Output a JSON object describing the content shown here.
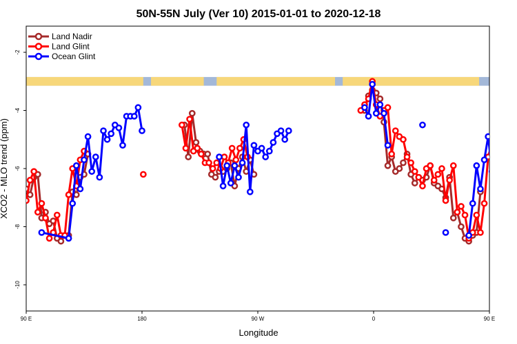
{
  "chart_data": {
    "type": "line",
    "title": "50N-55N July (Ver 10)   2015-01-01 to 2020-12-18",
    "xlabel": "Longitude",
    "ylabel": "XCO2 - MLO trend (ppm)",
    "xlim": [
      90,
      450
    ],
    "ylim": [
      -10.9,
      -1.1
    ],
    "x_ticks": [
      {
        "value": 90,
        "label": "90 E"
      },
      {
        "value": 180,
        "label": "180"
      },
      {
        "value": 270,
        "label": "90 W"
      },
      {
        "value": 360,
        "label": "0"
      },
      {
        "value": 450,
        "label": "90 E"
      }
    ],
    "y_ticks": [
      {
        "value": -2,
        "label": "-2"
      },
      {
        "value": -4,
        "label": "-4"
      },
      {
        "value": -6,
        "label": "-6"
      },
      {
        "value": -8,
        "label": "-8"
      },
      {
        "value": -10,
        "label": "-10"
      }
    ],
    "grid": false,
    "legend_position": "top-left",
    "land_band": {
      "y_top": -2.85,
      "y_bottom": -3.15,
      "ocean_color": "#a3b8d8",
      "land_color": "#f7d77a",
      "land_ranges": [
        [
          90,
          181
        ],
        [
          187,
          228
        ],
        [
          238,
          330
        ],
        [
          336,
          442
        ]
      ]
    },
    "series": [
      {
        "name": "Land Nadir",
        "color": "#a52a2a",
        "segments": [
          [
            [
              90,
              -6.7
            ],
            [
              93,
              -6.9
            ],
            [
              96,
              -6.3
            ],
            [
              99,
              -6.2
            ],
            [
              102,
              -7.7
            ],
            [
              105,
              -7.5
            ],
            [
              108,
              -7.9
            ],
            [
              111,
              -7.8
            ],
            [
              114,
              -8.4
            ],
            [
              117,
              -8.5
            ],
            [
              120,
              -8.3
            ],
            [
              123,
              -8.3
            ],
            [
              126,
              -6.8
            ],
            [
              129,
              -6.9
            ],
            [
              132,
              -6.3
            ],
            [
              135,
              -6.2
            ],
            [
              138,
              -5.5
            ]
          ],
          [
            [
              213,
              -4.5
            ],
            [
              216,
              -5.6
            ],
            [
              219,
              -4.1
            ],
            [
              222,
              -5.1
            ],
            [
              225,
              -5.4
            ],
            [
              228,
              -5.5
            ],
            [
              231,
              -5.5
            ],
            [
              234,
              -6.2
            ],
            [
              237,
              -6.3
            ],
            [
              240,
              -6.1
            ],
            [
              243,
              -6.1
            ],
            [
              246,
              -6.0
            ],
            [
              249,
              -5.8
            ],
            [
              252,
              -6.6
            ],
            [
              255,
              -6.0
            ],
            [
              258,
              -5.6
            ],
            [
              261,
              -6.1
            ],
            [
              264,
              -5.7
            ],
            [
              267,
              -6.2
            ]
          ],
          [
            [
              353,
              -4.0
            ],
            [
              356,
              -3.5
            ],
            [
              359,
              -3.3
            ],
            [
              362,
              -3.4
            ],
            [
              365,
              -3.6
            ],
            [
              368,
              -4.4
            ],
            [
              371,
              -5.9
            ],
            [
              374,
              -5.6
            ],
            [
              377,
              -6.1
            ],
            [
              380,
              -6.0
            ],
            [
              383,
              -5.8
            ],
            [
              386,
              -5.5
            ],
            [
              389,
              -6.2
            ],
            [
              392,
              -6.5
            ],
            [
              395,
              -6.3
            ],
            [
              398,
              -6.4
            ],
            [
              401,
              -6.3
            ],
            [
              404,
              -5.9
            ],
            [
              407,
              -6.5
            ],
            [
              410,
              -6.6
            ],
            [
              413,
              -6.7
            ],
            [
              416,
              -7.0
            ],
            [
              419,
              -6.3
            ],
            [
              422,
              -7.7
            ],
            [
              425,
              -7.5
            ],
            [
              428,
              -8.0
            ],
            [
              431,
              -8.4
            ],
            [
              434,
              -8.5
            ],
            [
              437,
              -8.3
            ],
            [
              440,
              -8.2
            ],
            [
              443,
              -6.8
            ]
          ]
        ]
      },
      {
        "name": "Land Glint",
        "color": "#ff0000",
        "segments": [
          [
            [
              90,
              -7.1
            ],
            [
              93,
              -6.4
            ],
            [
              96,
              -6.1
            ],
            [
              99,
              -7.5
            ],
            [
              102,
              -7.2
            ],
            [
              105,
              -7.7
            ],
            [
              108,
              -8.4
            ],
            [
              111,
              -8.2
            ],
            [
              114,
              -7.6
            ],
            [
              117,
              -8.3
            ],
            [
              120,
              -8.3
            ],
            [
              123,
              -6.9
            ],
            [
              126,
              -6.0
            ],
            [
              129,
              -6.6
            ],
            [
              132,
              -5.7
            ],
            [
              135,
              -5.4
            ]
          ],
          [
            [
              181,
              -6.2
            ]
          ],
          [
            [
              211,
              -4.5
            ],
            [
              214,
              -5.3
            ],
            [
              217,
              -4.3
            ],
            [
              220,
              -5.4
            ],
            [
              223,
              -5.3
            ],
            [
              226,
              -5.5
            ],
            [
              229,
              -5.8
            ],
            [
              232,
              -5.8
            ],
            [
              235,
              -6.0
            ],
            [
              238,
              -5.8
            ],
            [
              241,
              -6.0
            ],
            [
              244,
              -5.6
            ],
            [
              247,
              -5.8
            ],
            [
              250,
              -5.3
            ],
            [
              253,
              -5.7
            ],
            [
              256,
              -5.3
            ],
            [
              259,
              -5.0
            ],
            [
              262,
              -5.6
            ]
          ],
          [
            [
              350,
              -4.0
            ],
            [
              353,
              -3.8
            ],
            [
              356,
              -3.6
            ],
            [
              359,
              -3.0
            ],
            [
              362,
              -3.8
            ],
            [
              365,
              -4.2
            ],
            [
              368,
              -4.0
            ],
            [
              371,
              -3.9
            ],
            [
              374,
              -5.5
            ],
            [
              377,
              -4.7
            ],
            [
              380,
              -4.9
            ],
            [
              383,
              -5.0
            ],
            [
              386,
              -5.6
            ],
            [
              389,
              -5.8
            ],
            [
              392,
              -6.1
            ],
            [
              395,
              -6.3
            ],
            [
              398,
              -6.6
            ],
            [
              401,
              -6.0
            ],
            [
              404,
              -5.9
            ],
            [
              407,
              -6.4
            ],
            [
              410,
              -6.2
            ],
            [
              413,
              -6.0
            ],
            [
              416,
              -7.1
            ],
            [
              419,
              -6.4
            ],
            [
              422,
              -5.9
            ],
            [
              425,
              -7.5
            ],
            [
              428,
              -7.3
            ],
            [
              431,
              -7.6
            ],
            [
              434,
              -8.4
            ],
            [
              437,
              -8.2
            ],
            [
              440,
              -7.6
            ],
            [
              443,
              -8.2
            ],
            [
              446,
              -7.2
            ],
            [
              449,
              -5.6
            ],
            [
              452,
              -5.1
            ]
          ]
        ]
      },
      {
        "name": "Ocean Glint",
        "color": "#0000ff",
        "segments": [
          [
            [
              102,
              -8.2
            ],
            [
              123,
              -8.4
            ],
            [
              126,
              -7.2
            ],
            [
              129,
              -5.9
            ],
            [
              132,
              -6.7
            ],
            [
              135,
              -5.7
            ],
            [
              138,
              -4.9
            ],
            [
              141,
              -6.1
            ],
            [
              144,
              -5.6
            ],
            [
              147,
              -6.3
            ],
            [
              150,
              -4.7
            ],
            [
              153,
              -5.0
            ],
            [
              156,
              -4.8
            ],
            [
              159,
              -4.5
            ],
            [
              162,
              -4.6
            ],
            [
              165,
              -5.2
            ],
            [
              168,
              -4.2
            ],
            [
              171,
              -4.2
            ],
            [
              174,
              -4.2
            ],
            [
              177,
              -3.9
            ],
            [
              180,
              -4.7
            ]
          ],
          [
            [
              240,
              -5.6
            ],
            [
              243,
              -6.6
            ],
            [
              246,
              -5.9
            ],
            [
              249,
              -6.5
            ],
            [
              252,
              -5.9
            ],
            [
              255,
              -6.3
            ],
            [
              258,
              -5.8
            ],
            [
              261,
              -4.5
            ],
            [
              264,
              -6.8
            ],
            [
              267,
              -5.2
            ],
            [
              270,
              -5.4
            ],
            [
              273,
              -5.3
            ],
            [
              276,
              -5.6
            ],
            [
              279,
              -5.4
            ],
            [
              282,
              -5.1
            ],
            [
              285,
              -4.8
            ],
            [
              288,
              -4.7
            ],
            [
              291,
              -5.0
            ],
            [
              294,
              -4.7
            ]
          ],
          [
            [
              353,
              -3.9
            ],
            [
              356,
              -4.2
            ],
            [
              359,
              -3.1
            ],
            [
              362,
              -4.1
            ],
            [
              365,
              -3.8
            ],
            [
              368,
              -4.1
            ],
            [
              371,
              -5.2
            ]
          ],
          [
            [
              398,
              -4.5
            ]
          ],
          [
            [
              416,
              -8.2
            ]
          ],
          [
            [
              434,
              -8.3
            ],
            [
              437,
              -7.2
            ],
            [
              440,
              -5.9
            ],
            [
              443,
              -6.7
            ],
            [
              446,
              -5.7
            ],
            [
              449,
              -4.9
            ],
            [
              452,
              -6.1
            ],
            [
              455,
              -5.6
            ],
            [
              458,
              -6.4
            ]
          ]
        ]
      }
    ]
  }
}
